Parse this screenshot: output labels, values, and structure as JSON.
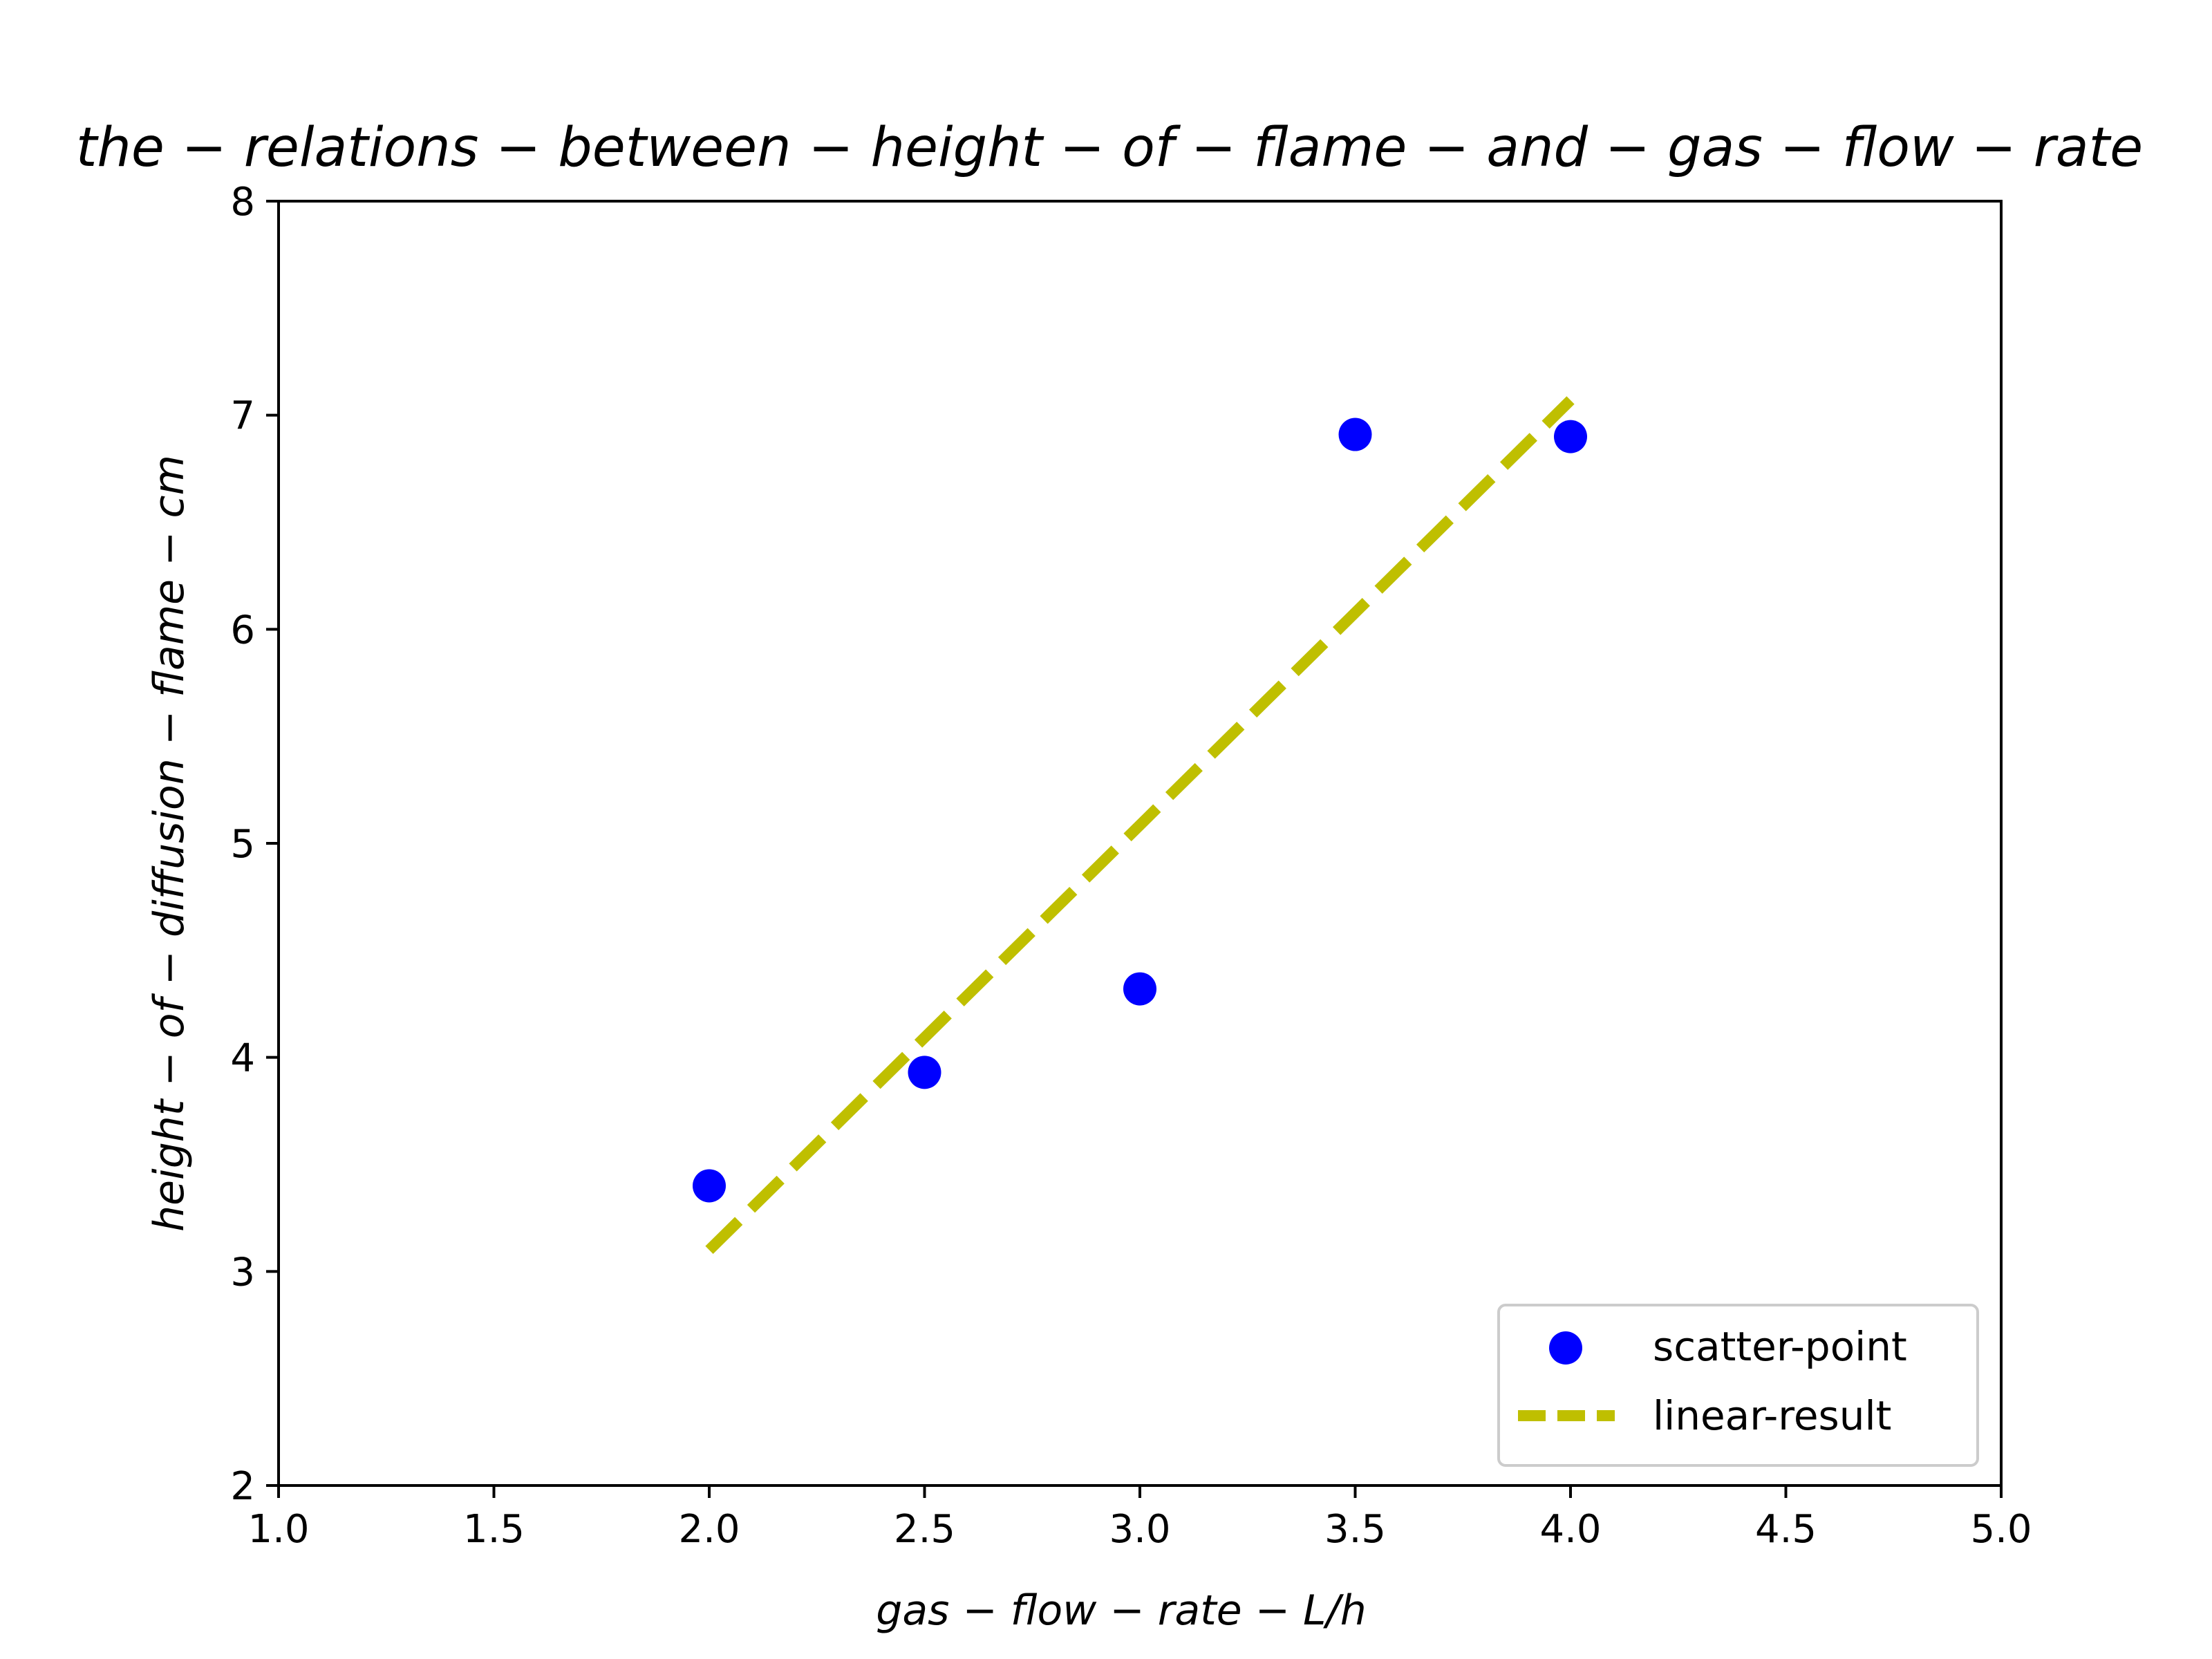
{
  "chart_data": {
    "type": "scatter",
    "title": "the − relations − between − height − of − flame − and − gas − flow − rate",
    "xlabel": "gas − flow − rate − L/h",
    "ylabel": "height − of − diffusion − flame − cm",
    "xlim": [
      1.0,
      5.0
    ],
    "ylim": [
      2,
      8
    ],
    "x_ticks": [
      "1.0",
      "1.5",
      "2.0",
      "2.5",
      "3.0",
      "3.5",
      "4.0",
      "4.5",
      "5.0"
    ],
    "y_ticks": [
      "2",
      "3",
      "4",
      "5",
      "6",
      "7",
      "8"
    ],
    "grid": false,
    "legend_position": "bottom-right",
    "series": [
      {
        "name": "scatter-point",
        "kind": "scatter",
        "color": "#0000ff",
        "x": [
          2.0,
          2.5,
          3.0,
          3.5,
          4.0
        ],
        "y": [
          3.4,
          3.93,
          4.32,
          6.91,
          6.9
        ]
      },
      {
        "name": "linear-result",
        "kind": "line",
        "style": "dashed",
        "color": "#bfbf00",
        "x": [
          2.0,
          4.0
        ],
        "y": [
          3.1,
          7.07
        ]
      }
    ]
  }
}
